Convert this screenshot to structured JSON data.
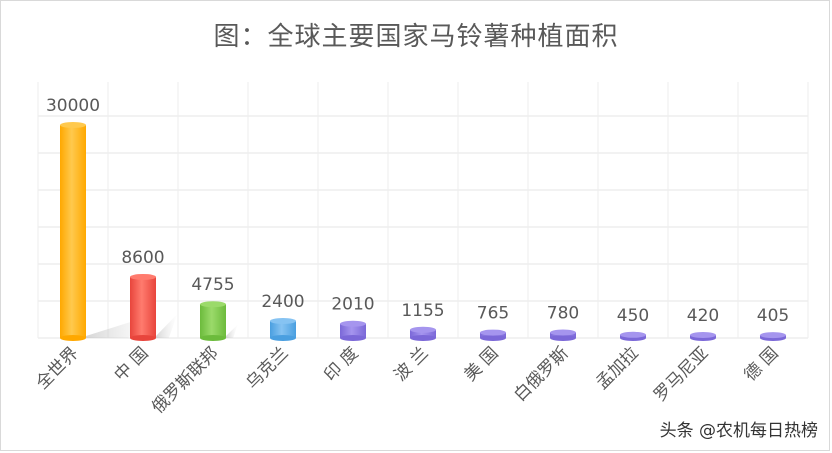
{
  "watermark": "头条 @农机每日热榜",
  "chart_data": {
    "type": "bar",
    "title": "图：全球主要国家马铃薯种植面积",
    "categories": [
      "全世界",
      "中 国",
      "俄罗斯联邦",
      "乌克兰",
      "印 度",
      "波 兰",
      "美 国",
      "白俄罗斯",
      "孟加拉",
      "罗马尼亚",
      "德 国"
    ],
    "values": [
      30000,
      8600,
      4755,
      2400,
      2010,
      1155,
      765,
      780,
      450,
      420,
      405
    ],
    "data_labels": [
      "30000",
      "8600",
      "4755",
      "2400",
      "2010",
      "1155",
      "765",
      "780",
      "450",
      "420",
      "405"
    ],
    "ylim": [
      0,
      30000
    ],
    "grid": true,
    "colors": [
      "#FFA800",
      "#E8453C",
      "#6CBB3C",
      "#4A9FE0",
      "#7B68D8",
      "#7B68D8",
      "#7B68D8",
      "#7B68D8",
      "#7B68D8",
      "#7B68D8",
      "#7B68D8"
    ],
    "colors_light": [
      "#FFC94D",
      "#FF7B6E",
      "#9BDA6A",
      "#86C3F2",
      "#A595EE",
      "#A595EE",
      "#A595EE",
      "#A595EE",
      "#A595EE",
      "#A595EE",
      "#A595EE"
    ]
  }
}
